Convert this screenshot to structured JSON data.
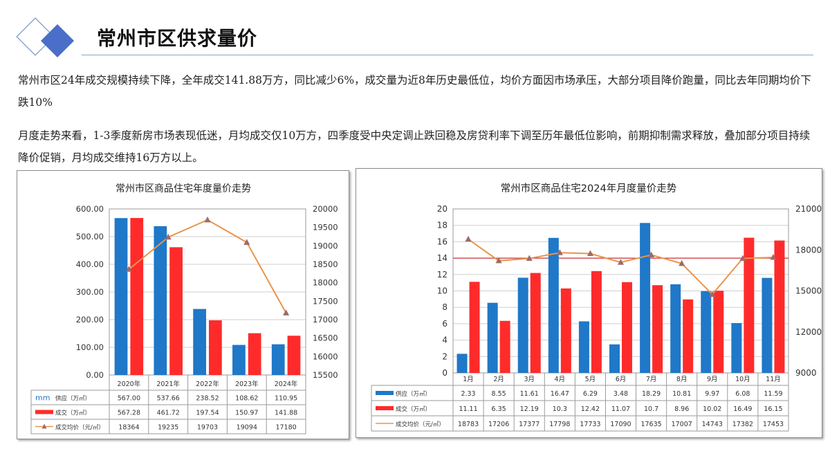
{
  "header": {
    "title": "常州市区供求量价"
  },
  "paragraphs": [
    "常州市区24年成交规模持续下降，全年成交141.88万方，同比减少6%，成交量为近8年历史最低位，均价方面因市场承压，大部分项目降价跑量，同比去年同期均价下跌10%",
    "月度走势来看，1-3季度新房市场表现低迷，月均成交仅10万方，四季度受中央定调止跌回稳及房贷利率下调至历年最低位影响，前期抑制需求释放，叠加部分项目持续降价促销，月均成交维持16万方以上。"
  ],
  "colors": {
    "supply": "#1f78c8",
    "deal": "#ff2b2b",
    "price_line": "#e8954a",
    "price_marker": "#9c6b6b",
    "ref_line": "#d03030",
    "logo_dark": "#4a6fc9"
  },
  "chart_data": [
    {
      "type": "bar",
      "title": "常州市区商品住宅年度量价走势",
      "categories": [
        "2020年",
        "2021年",
        "2022年",
        "2023年",
        "2024年"
      ],
      "y_ticks": [
        "600.00",
        "500.00",
        "400.00",
        "300.00",
        "200.00",
        "100.00",
        "0.00"
      ],
      "y2_ticks": [
        "20000",
        "19500",
        "19000",
        "18500",
        "18000",
        "17500",
        "17000",
        "16500",
        "16000",
        "15500"
      ],
      "ylim": [
        0,
        600
      ],
      "y2lim": [
        15500,
        20000
      ],
      "series": [
        {
          "name": "供应（万㎡）",
          "kind": "bar",
          "color": "#1f78c8",
          "values": [
            567.0,
            537.66,
            238.52,
            108.62,
            110.95
          ],
          "labels": [
            "567.00",
            "537.66",
            "238.52",
            "108.62",
            "110.95"
          ]
        },
        {
          "name": "成交（万㎡）",
          "kind": "bar",
          "color": "#ff2b2b",
          "values": [
            567.28,
            461.72,
            197.54,
            150.97,
            141.88
          ],
          "labels": [
            "567.28",
            "461.72",
            "197.54",
            "150.97",
            "141.88"
          ]
        },
        {
          "name": "成交均价（元/㎡）",
          "kind": "line",
          "axis": "right",
          "color": "#e8954a",
          "values": [
            18364,
            19235,
            19703,
            19094,
            17180
          ],
          "labels": [
            "18364",
            "19235",
            "19703",
            "19094",
            "17180"
          ]
        }
      ],
      "legend_prefix": "mm",
      "grid": true
    },
    {
      "type": "bar",
      "title": "常州市区商品住宅2024年月度量价走势",
      "categories": [
        "1月",
        "2月",
        "3月",
        "4月",
        "5月",
        "6月",
        "7月",
        "8月",
        "9月",
        "10月",
        "11月"
      ],
      "y_ticks": [
        "20",
        "18",
        "16",
        "14",
        "12",
        "10",
        "8",
        "6",
        "4",
        "2",
        "0"
      ],
      "y2_ticks": [
        "21000",
        "18000",
        "15000",
        "12000",
        "9000"
      ],
      "ylim": [
        0,
        20
      ],
      "y2lim": [
        9000,
        21000
      ],
      "ref_line": 14,
      "series": [
        {
          "name": "供应（万㎡）",
          "kind": "bar",
          "color": "#1f78c8",
          "values": [
            2.33,
            8.55,
            11.61,
            16.47,
            6.29,
            3.48,
            18.29,
            10.81,
            9.97,
            6.08,
            11.59
          ],
          "labels": [
            "2.33",
            "8.55",
            "11.61",
            "16.47",
            "6.29",
            "3.48",
            "18.29",
            "10.81",
            "9.97",
            "6.08",
            "11.59"
          ]
        },
        {
          "name": "成交（万㎡）",
          "kind": "bar",
          "color": "#ff2b2b",
          "values": [
            11.11,
            6.35,
            12.19,
            10.3,
            12.42,
            11.07,
            10.7,
            8.96,
            10.02,
            16.49,
            16.15
          ],
          "labels": [
            "11.11",
            "6.35",
            "12.19",
            "10.3",
            "12.42",
            "11.07",
            "10.7",
            "8.96",
            "10.02",
            "16.49",
            "16.15"
          ]
        },
        {
          "name": "成交均价（元/㎡）",
          "kind": "line",
          "axis": "right",
          "color": "#e8954a",
          "values": [
            18783,
            17206,
            17377,
            17798,
            17733,
            17090,
            17635,
            17007,
            14743,
            17382,
            17453
          ],
          "labels": [
            "18783",
            "17206",
            "17377",
            "17798",
            "17733",
            "17090",
            "17635",
            "17007",
            "14743",
            "17382",
            "17453"
          ]
        }
      ],
      "grid": true
    }
  ]
}
